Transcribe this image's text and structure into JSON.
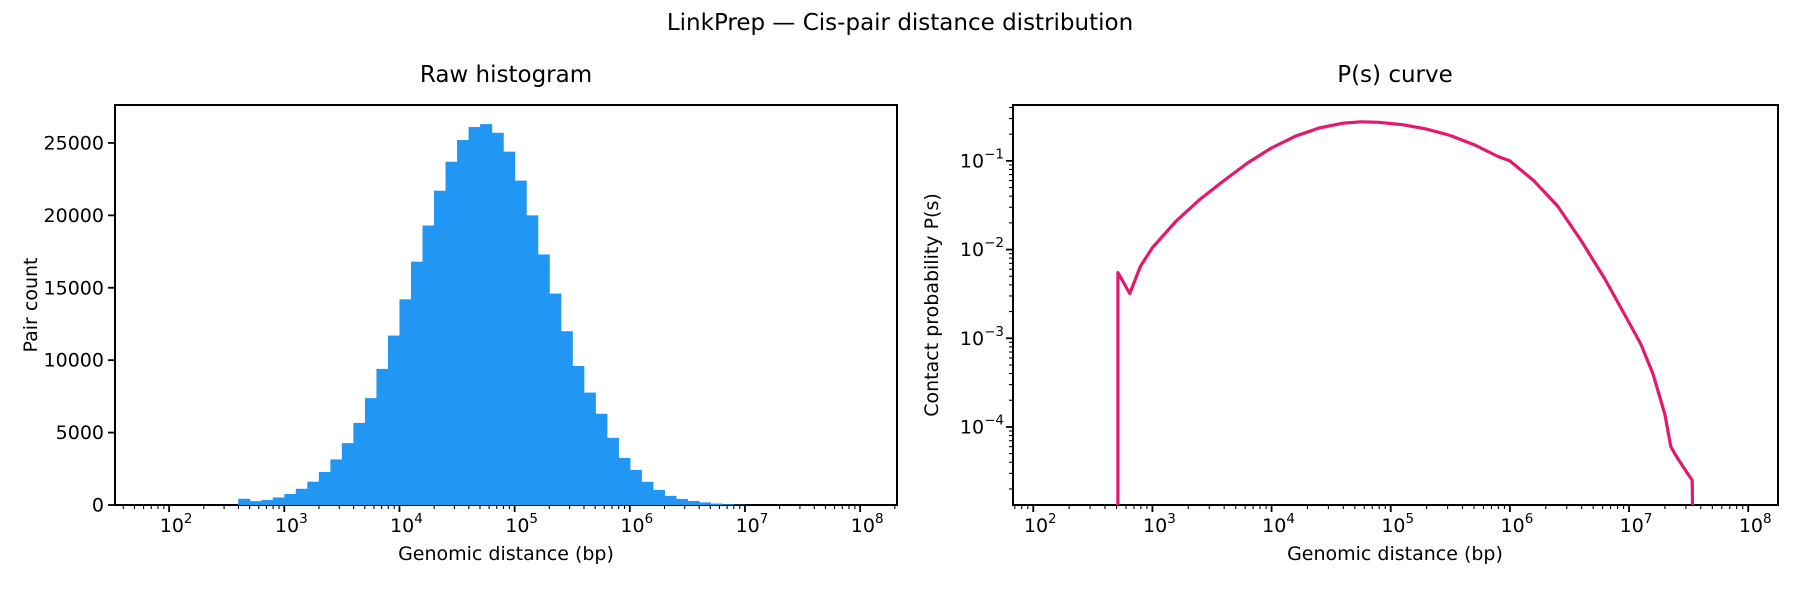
{
  "page": {
    "title": "LinkPrep — Cis-pair distance distribution"
  },
  "colors": {
    "histogram_fill": "#2196f3",
    "curve_stroke": "#e4186c",
    "axis": "#000000"
  },
  "chart_data": [
    {
      "type": "bar",
      "title": "Raw histogram",
      "xlabel": "Genomic distance (bp)",
      "ylabel": "Pair count",
      "x_scale": "log",
      "grid": false,
      "legend": false,
      "x_tick_exponents": [
        2,
        3,
        4,
        5,
        6,
        7,
        8
      ],
      "y_ticks": [
        0,
        5000,
        10000,
        15000,
        20000,
        25000
      ],
      "xlim_log10": [
        1.53,
        8.32
      ],
      "ylim": [
        0,
        27620
      ],
      "bar_color": "#2196f3",
      "bin_log10_width": 0.1,
      "bin_log10_centers": [
        2.65,
        2.75,
        2.85,
        2.95,
        3.05,
        3.15,
        3.25,
        3.35,
        3.45,
        3.55,
        3.65,
        3.75,
        3.85,
        3.95,
        4.05,
        4.15,
        4.25,
        4.35,
        4.45,
        4.55,
        4.65,
        4.75,
        4.85,
        4.95,
        5.05,
        5.15,
        5.25,
        5.35,
        5.45,
        5.55,
        5.65,
        5.75,
        5.85,
        5.95,
        6.05,
        6.15,
        6.25,
        6.35,
        6.45,
        6.55,
        6.65,
        6.75,
        6.85,
        6.95
      ],
      "counts": [
        430,
        270,
        350,
        520,
        760,
        1120,
        1610,
        2280,
        3150,
        4270,
        5670,
        7380,
        9400,
        11700,
        14200,
        16800,
        19300,
        21700,
        23700,
        25200,
        26100,
        26300,
        25700,
        24400,
        22400,
        20000,
        17300,
        14600,
        12000,
        9600,
        7760,
        6300,
        4640,
        3250,
        2420,
        1600,
        1040,
        630,
        420,
        280,
        180,
        100,
        55,
        25
      ]
    },
    {
      "type": "line",
      "title": "P(s) curve",
      "xlabel": "Genomic distance (bp)",
      "ylabel": "Contact probability P(s)",
      "x_scale": "log",
      "y_scale": "log",
      "grid": false,
      "legend": false,
      "x_tick_exponents": [
        2,
        3,
        4,
        5,
        6,
        7,
        8
      ],
      "y_tick_exponents": [
        -1,
        -2,
        -3,
        -4
      ],
      "xlim_log10": [
        1.83,
        8.25
      ],
      "ylim_log10": [
        -4.88,
        -0.37
      ],
      "line_color": "#e4186c",
      "line_width": 3.2,
      "points_log10s_P": [
        [
          2.71,
          1.5e-06
        ],
        [
          2.71,
          0.0055
        ],
        [
          2.76,
          0.0042
        ],
        [
          2.81,
          0.0032
        ],
        [
          2.9,
          0.0065
        ],
        [
          3.0,
          0.0105
        ],
        [
          3.2,
          0.021
        ],
        [
          3.4,
          0.037
        ],
        [
          3.6,
          0.06
        ],
        [
          3.8,
          0.095
        ],
        [
          4.0,
          0.14
        ],
        [
          4.2,
          0.19
        ],
        [
          4.4,
          0.235
        ],
        [
          4.6,
          0.266
        ],
        [
          4.75,
          0.276
        ],
        [
          4.9,
          0.272
        ],
        [
          5.1,
          0.256
        ],
        [
          5.3,
          0.228
        ],
        [
          5.5,
          0.193
        ],
        [
          5.7,
          0.152
        ],
        [
          5.9,
          0.112
        ],
        [
          6.0,
          0.1
        ],
        [
          6.2,
          0.06
        ],
        [
          6.4,
          0.031
        ],
        [
          6.6,
          0.0125
        ],
        [
          6.8,
          0.0046
        ],
        [
          7.0,
          0.0015
        ],
        [
          7.1,
          0.00085
        ],
        [
          7.2,
          0.0004
        ],
        [
          7.3,
          0.00014
        ],
        [
          7.35,
          6e-05
        ],
        [
          7.4,
          4.6e-05
        ],
        [
          7.47,
          3.3e-05
        ],
        [
          7.53,
          2.5e-05
        ],
        [
          7.54,
          1.5e-06
        ]
      ]
    }
  ]
}
